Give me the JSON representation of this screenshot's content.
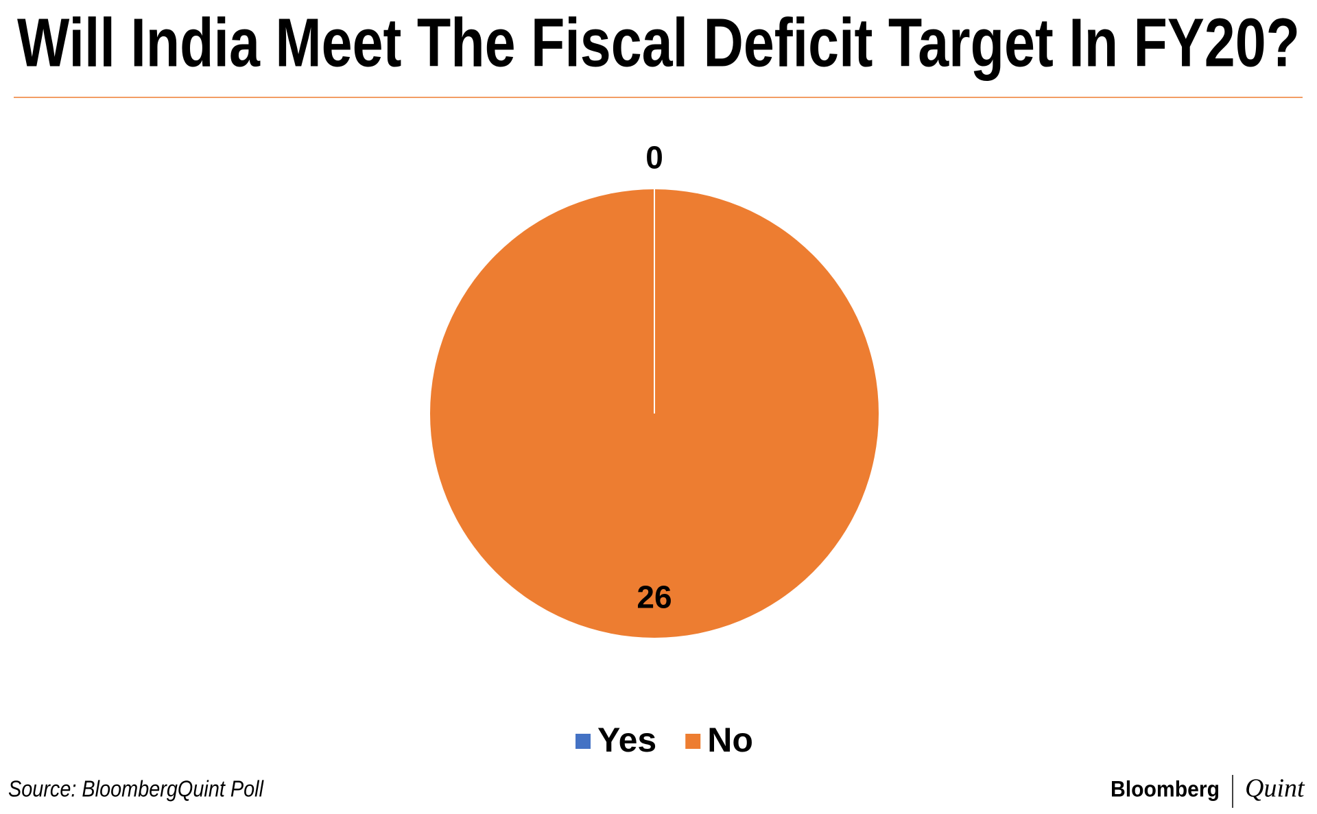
{
  "chart_data": {
    "type": "pie",
    "title": "Will India Meet The Fiscal Deficit Target In FY20?",
    "categories": [
      "Yes",
      "No"
    ],
    "values": [
      0,
      26
    ],
    "colors": [
      "#4472c4",
      "#ed7d31"
    ],
    "legend": "bottom",
    "source": "Source: BloombergQuint Poll",
    "logo": [
      "Bloomberg",
      "Quint"
    ]
  }
}
